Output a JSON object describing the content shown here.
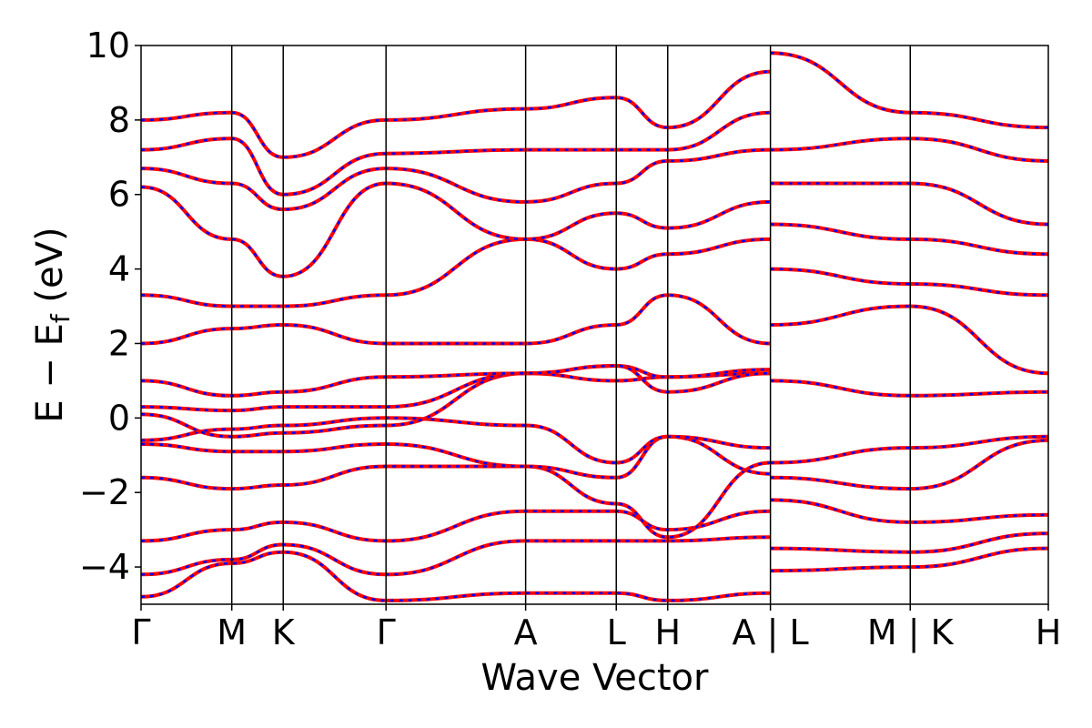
{
  "chart_data": {
    "type": "line",
    "xlabel": "Wave Vector",
    "ylabel_main": "E − E",
    "ylabel_sub": "f",
    "ylabel_unit": " (eV)",
    "ylim": [
      -5,
      10
    ],
    "yticks": [
      10,
      8,
      6,
      4,
      2,
      0,
      -2,
      -4
    ],
    "ytick_labels": [
      "10",
      "8",
      "6",
      "4",
      "2",
      "0",
      "−2",
      "−4"
    ],
    "segment_boundaries": [
      0,
      1,
      1.567,
      2.7,
      4.239,
      5.238,
      5.805,
      6.937,
      8.478,
      10.0
    ],
    "kpoint_labels": [
      {
        "label": "Γ",
        "x": 0
      },
      {
        "label": "M",
        "x": 1
      },
      {
        "label": "K",
        "x": 1.567
      },
      {
        "label": "Γ",
        "x": 2.7
      },
      {
        "label": "A",
        "x": 4.239
      },
      {
        "label": "L",
        "x": 5.238
      },
      {
        "label": "H",
        "x": 5.805
      },
      {
        "label": "A | L",
        "x": 6.937
      },
      {
        "label": "M | K",
        "x": 8.478
      },
      {
        "label": "H",
        "x": 10.0
      }
    ],
    "series": [
      {
        "color": "#ff0000",
        "style": "solid"
      },
      {
        "color": "#0000ff",
        "style": "dashed"
      }
    ],
    "bands": [
      {
        "x": [
          0,
          1,
          1.567,
          2.7,
          4.239,
          5.238,
          5.805,
          6.937
        ],
        "y": [
          -4.8,
          -3.9,
          -3.6,
          -4.9,
          -4.7,
          -4.7,
          -4.9,
          -4.7
        ]
      },
      {
        "x": [
          0,
          1,
          1.567,
          2.7,
          4.239,
          5.238,
          5.805,
          6.937
        ],
        "y": [
          -4.2,
          -3.8,
          -3.4,
          -4.2,
          -3.3,
          -3.3,
          -3.3,
          -3.2
        ]
      },
      {
        "x": [
          0,
          1,
          1.567,
          2.7,
          4.239,
          5.238,
          5.805,
          6.937
        ],
        "y": [
          -3.3,
          -3.0,
          -2.8,
          -3.3,
          -2.5,
          -2.5,
          -3.0,
          -2.5
        ]
      },
      {
        "x": [
          0,
          1,
          1.567,
          2.7,
          4.239,
          5.238,
          5.805,
          6.937
        ],
        "y": [
          -1.6,
          -1.9,
          -1.8,
          -1.3,
          -1.3,
          -2.3,
          -3.2,
          -1.2
        ]
      },
      {
        "x": [
          0,
          1,
          1.567,
          2.7,
          4.239,
          5.238,
          5.805,
          6.937
        ],
        "y": [
          -0.7,
          -0.9,
          -0.9,
          -0.7,
          -1.3,
          -1.6,
          -0.5,
          -1.5
        ]
      },
      {
        "x": [
          0,
          1,
          1.567,
          2.7,
          4.239,
          5.238,
          5.805,
          6.937
        ],
        "y": [
          -0.6,
          -0.3,
          -0.2,
          0.0,
          -0.2,
          -1.2,
          -0.5,
          -0.8
        ]
      },
      {
        "x": [
          0,
          1,
          1.567,
          2.7,
          4.239,
          5.238,
          5.805,
          6.937
        ],
        "y": [
          0.1,
          -0.5,
          -0.4,
          -0.2,
          1.2,
          1.0,
          1.1,
          1.2
        ]
      },
      {
        "x": [
          0,
          1,
          1.567,
          2.7,
          4.239,
          5.238,
          5.805,
          6.937
        ],
        "y": [
          0.3,
          0.2,
          0.3,
          0.3,
          1.2,
          1.4,
          1.1,
          1.3
        ]
      },
      {
        "x": [
          0,
          1,
          1.567,
          2.7,
          4.239,
          5.238,
          5.805,
          6.937
        ],
        "y": [
          1.0,
          0.6,
          0.7,
          1.1,
          1.2,
          1.4,
          0.7,
          1.2
        ]
      },
      {
        "x": [
          0,
          1,
          1.567,
          2.7,
          4.239,
          5.238,
          5.805,
          6.937
        ],
        "y": [
          2.0,
          2.4,
          2.5,
          2.0,
          2.0,
          2.5,
          3.3,
          2.0
        ]
      },
      {
        "x": [
          0,
          1,
          1.567,
          2.7,
          4.239,
          5.238,
          5.805,
          6.937
        ],
        "y": [
          3.3,
          3.0,
          3.0,
          3.3,
          4.8,
          4.0,
          4.4,
          4.8
        ]
      },
      {
        "x": [
          0,
          1,
          1.567,
          2.7,
          4.239,
          5.238,
          5.805,
          6.937
        ],
        "y": [
          6.2,
          4.8,
          3.8,
          6.3,
          4.8,
          5.5,
          5.1,
          5.8
        ]
      },
      {
        "x": [
          0,
          1,
          1.567,
          2.7,
          4.239,
          5.238,
          5.805,
          6.937
        ],
        "y": [
          6.7,
          6.3,
          5.6,
          6.7,
          5.8,
          6.3,
          6.9,
          7.2
        ]
      },
      {
        "x": [
          0,
          1,
          1.567,
          2.7,
          4.239,
          5.238,
          5.805,
          6.937
        ],
        "y": [
          7.2,
          7.5,
          6.0,
          7.1,
          7.2,
          7.2,
          7.2,
          8.2
        ]
      },
      {
        "x": [
          0,
          1,
          1.567,
          2.7,
          4.239,
          5.238,
          5.805,
          6.937
        ],
        "y": [
          8.0,
          8.2,
          7.0,
          8.0,
          8.3,
          8.6,
          7.8,
          9.3
        ]
      },
      {
        "x": [
          6.937,
          8.478,
          10.0
        ],
        "y": [
          -4.1,
          -4.0,
          -3.5
        ]
      },
      {
        "x": [
          6.937,
          8.478,
          10.0
        ],
        "y": [
          -3.5,
          -3.6,
          -3.1
        ]
      },
      {
        "x": [
          6.937,
          8.478,
          10.0
        ],
        "y": [
          -2.2,
          -2.8,
          -2.6
        ]
      },
      {
        "x": [
          6.937,
          8.478,
          10.0
        ],
        "y": [
          -1.6,
          -1.9,
          -0.6
        ]
      },
      {
        "x": [
          6.937,
          8.478,
          10.0
        ],
        "y": [
          -1.2,
          -0.8,
          -0.5
        ]
      },
      {
        "x": [
          6.937,
          8.478,
          10.0
        ],
        "y": [
          1.0,
          0.6,
          0.7
        ]
      },
      {
        "x": [
          6.937,
          8.478,
          10.0
        ],
        "y": [
          2.5,
          3.0,
          1.2
        ]
      },
      {
        "x": [
          6.937,
          8.478,
          10.0
        ],
        "y": [
          4.0,
          3.6,
          3.3
        ]
      },
      {
        "x": [
          6.937,
          8.478,
          10.0
        ],
        "y": [
          5.2,
          4.8,
          4.4
        ]
      },
      {
        "x": [
          6.937,
          8.478,
          10.0
        ],
        "y": [
          6.3,
          6.3,
          5.2
        ]
      },
      {
        "x": [
          6.937,
          8.478,
          10.0
        ],
        "y": [
          7.2,
          7.5,
          6.9
        ]
      },
      {
        "x": [
          6.937,
          8.478,
          10.0
        ],
        "y": [
          9.8,
          8.2,
          7.8
        ]
      }
    ]
  }
}
